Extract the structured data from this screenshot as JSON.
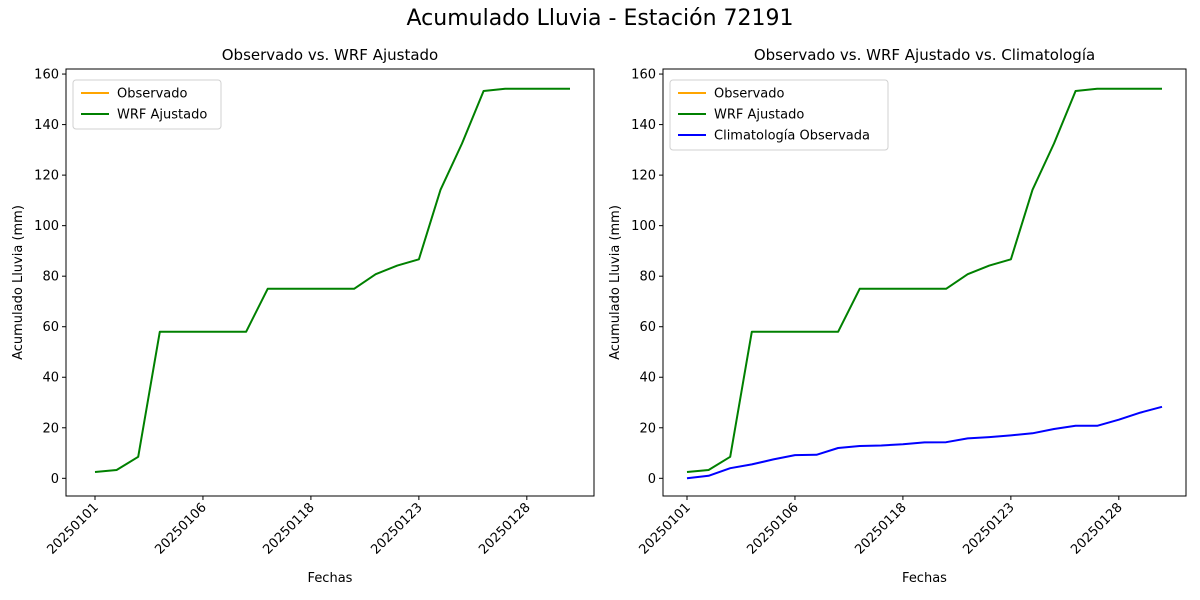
{
  "suptitle": "Acumulado Lluvia - Estación 72191",
  "colors": {
    "observado": "#ffa500",
    "wrf": "#008000",
    "climatologia": "#0000ff"
  },
  "chart_data": [
    {
      "type": "line",
      "title": "Observado vs. WRF Ajustado",
      "xlabel": "Fechas",
      "ylabel": "Acumulado Lluvia (mm)",
      "ylim": [
        -7,
        162
      ],
      "yticks": [
        0,
        20,
        40,
        60,
        80,
        100,
        120,
        140,
        160
      ],
      "xticks": [
        {
          "index": 0,
          "label": "20250101"
        },
        {
          "index": 5,
          "label": "20250106"
        },
        {
          "index": 10,
          "label": "20250118"
        },
        {
          "index": 15,
          "label": "20250123"
        },
        {
          "index": 20,
          "label": "20250128"
        }
      ],
      "legend_location": "upper left",
      "grid": false,
      "series": [
        {
          "name": "Observado",
          "color": "#ffa500",
          "values": []
        },
        {
          "name": "WRF Ajustado",
          "color": "#008000",
          "values": [
            2.5,
            3.3,
            8.5,
            58,
            58,
            58,
            58,
            58,
            75,
            75,
            75,
            75,
            75,
            80.8,
            84.2,
            86.7,
            114.2,
            132.5,
            153.3,
            154.2,
            154.2,
            154.2,
            154.2
          ]
        }
      ]
    },
    {
      "type": "line",
      "title": "Observado vs. WRF Ajustado vs. Climatología",
      "xlabel": "Fechas",
      "ylabel": "Acumulado Lluvia (mm)",
      "ylim": [
        -7,
        162
      ],
      "yticks": [
        0,
        20,
        40,
        60,
        80,
        100,
        120,
        140,
        160
      ],
      "xticks": [
        {
          "index": 0,
          "label": "20250101"
        },
        {
          "index": 5,
          "label": "20250106"
        },
        {
          "index": 10,
          "label": "20250118"
        },
        {
          "index": 15,
          "label": "20250123"
        },
        {
          "index": 20,
          "label": "20250128"
        }
      ],
      "legend_location": "upper left",
      "grid": false,
      "series": [
        {
          "name": "Observado",
          "color": "#ffa500",
          "values": []
        },
        {
          "name": "WRF Ajustado",
          "color": "#008000",
          "values": [
            2.5,
            3.3,
            8.5,
            58,
            58,
            58,
            58,
            58,
            75,
            75,
            75,
            75,
            75,
            80.8,
            84.2,
            86.7,
            114.2,
            132.5,
            153.3,
            154.2,
            154.2,
            154.2,
            154.2
          ]
        },
        {
          "name": "Climatología Observada",
          "color": "#0000ff",
          "values": [
            0,
            1,
            4,
            5.5,
            7.5,
            9.2,
            9.3,
            12,
            12.8,
            13,
            13.5,
            14.2,
            14.3,
            15.8,
            16.3,
            17,
            17.8,
            19.5,
            20.8,
            20.8,
            23.2,
            26,
            28.3
          ]
        }
      ]
    }
  ]
}
